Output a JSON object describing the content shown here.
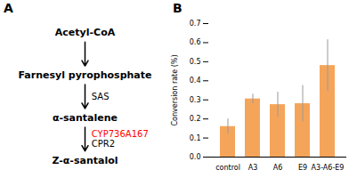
{
  "chart_data": [
    {
      "type": "diagram",
      "title": "A",
      "nodes": [
        "Acetyl-CoA",
        "Farnesyl pyrophosphate",
        "α-santalene",
        "Z-α-santalol"
      ],
      "steps": [
        [],
        [
          {
            "text": "SAS",
            "color": "black"
          }
        ],
        [
          {
            "text": "CYP736A167",
            "color": "red"
          },
          {
            "text": "CPR2",
            "color": "black"
          }
        ]
      ]
    },
    {
      "type": "bar",
      "title": "B",
      "categories": [
        "control",
        "A3",
        "A6",
        "E9",
        "A3-A6-E9"
      ],
      "values": [
        0.16,
        0.305,
        0.275,
        0.28,
        0.48
      ],
      "errors": [
        0.04,
        0.025,
        0.065,
        0.095,
        0.135
      ],
      "color": "#F5A55A",
      "ylabel": "Conversion rate (%)",
      "ylim": [
        0.0,
        0.7
      ],
      "yticks": [
        {
          "value": 0.0,
          "label": "0.0"
        },
        0.1,
        0.2,
        0.3,
        0.4,
        0.5,
        0.6,
        0.7
      ]
    }
  ]
}
